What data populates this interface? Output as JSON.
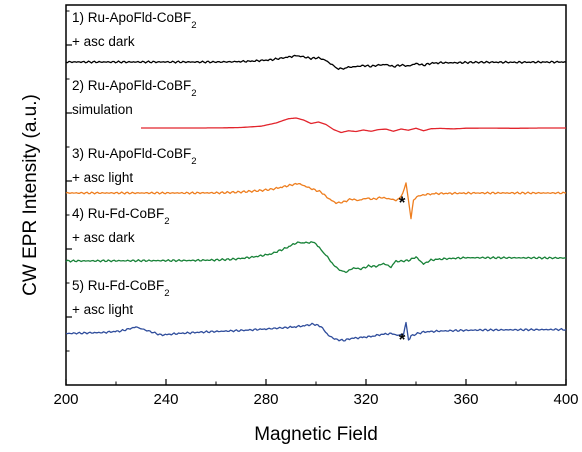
{
  "chart_data": {
    "type": "line",
    "title": "",
    "xlabel": "Magnetic Field",
    "ylabel": "CW EPR Intensity (a.u.)",
    "xlim": [
      200,
      400
    ],
    "x_ticks": [
      "200",
      "240",
      "280",
      "320",
      "360",
      "400"
    ],
    "grid": false,
    "legend": "none",
    "series": [
      {
        "label_line1": "1) Ru-ApoFld-CoBF",
        "label_sub": "2",
        "label_line2": "+ asc dark",
        "color": "#000000",
        "x": [
          200,
          260,
          268,
          275,
          282,
          288,
          292,
          295,
          298,
          301,
          304,
          307,
          309,
          311,
          313,
          316,
          319,
          322,
          325,
          328,
          331,
          334,
          337,
          340,
          343,
          346,
          350,
          356,
          362,
          370,
          380,
          390,
          400
        ],
        "y": [
          0,
          0,
          0.3,
          0.9,
          2.2,
          4.5,
          6.3,
          5.2,
          3.6,
          4.2,
          1.5,
          -3.8,
          -7,
          -6.5,
          -5.3,
          -4.6,
          -3.6,
          -4.3,
          -3.1,
          -2.5,
          -4.6,
          -3,
          -4.1,
          -1.5,
          -3.2,
          -1.3,
          -0.7,
          -0.8,
          -0.3,
          -0.2,
          -0.3,
          -0.1,
          0
        ]
      },
      {
        "name": "simulation",
        "label_line1": "2) Ru-ApoFld-CoBF",
        "label_sub": "2",
        "label_line2": "simulation",
        "color": "#e2242c",
        "x": [
          230,
          250,
          262,
          270,
          278,
          284,
          289,
          292,
          295,
          298,
          301,
          304,
          307,
          310,
          313,
          316,
          319,
          322,
          325,
          328,
          331,
          334,
          337,
          340,
          343,
          346,
          350,
          355,
          360,
          370,
          380,
          390,
          400
        ],
        "y": [
          0,
          0,
          0.1,
          0.5,
          1.8,
          5,
          9.3,
          10,
          8,
          4.5,
          6,
          3.5,
          -1.5,
          -4.5,
          -2.8,
          -3.5,
          -2,
          -3.3,
          -1.6,
          -1.1,
          -3.3,
          -1,
          -2.2,
          -0.2,
          -2.8,
          -0.7,
          -0.4,
          -0.9,
          -0.2,
          -0.1,
          -0.3,
          0,
          0
        ]
      },
      {
        "label_line1": "3) Ru-ApoFld-CoBF",
        "label_sub": "2",
        "label_line2": "+ asc light",
        "color": "#ee7e1f",
        "x": [
          200,
          250,
          262,
          270,
          278,
          283,
          287,
          290,
          293,
          296,
          299,
          302,
          305,
          308,
          311,
          314,
          317,
          320,
          323,
          326,
          329,
          332,
          334,
          336,
          338,
          339,
          341,
          344,
          348,
          355,
          365,
          380,
          400
        ],
        "y": [
          0,
          0,
          0.2,
          1,
          2.5,
          4,
          6.3,
          8,
          9.5,
          6.5,
          3.5,
          1,
          -5.5,
          -10,
          -9,
          -6,
          -7.5,
          -5.2,
          -6.2,
          -4.4,
          -5.7,
          -7.2,
          -4.3,
          9.5,
          -25,
          -6.5,
          -3,
          -1.5,
          -0.6,
          -0.3,
          0,
          0,
          0
        ]
      },
      {
        "label_line1": "4) Ru-Fd-CoBF",
        "label_sub": "2",
        "label_line2": "+ asc dark",
        "color": "#188238",
        "x": [
          200,
          250,
          260,
          268,
          275,
          282,
          288,
          292,
          294,
          296,
          298,
          300,
          302,
          304,
          307,
          310,
          312,
          315,
          318,
          321,
          324,
          327,
          330,
          332,
          334,
          337,
          340,
          343,
          346,
          350,
          360,
          380,
          400
        ],
        "y": [
          -3,
          -2.5,
          -2,
          -1,
          1,
          4,
          10,
          15,
          15.5,
          15,
          16,
          14.5,
          8,
          3,
          -7,
          -13,
          -14,
          -10,
          -11,
          -8,
          -8.5,
          -5.5,
          -9,
          -3,
          -3.2,
          -2.5,
          1,
          -6,
          -2,
          -1,
          0.3,
          0.2,
          0
        ]
      },
      {
        "label_line1": "5) Ru-Fd-CoBF",
        "label_sub": "2",
        "label_line2": "+ asc light",
        "color": "#2f4d9c",
        "x": [
          200,
          215,
          222,
          228,
          233,
          238,
          245,
          255,
          270,
          280,
          288,
          292,
          296,
          299,
          302,
          305,
          308,
          311,
          314,
          318,
          322,
          326,
          330,
          333,
          335,
          336,
          337,
          338,
          340,
          343,
          350,
          365,
          400
        ],
        "y": [
          -3.5,
          -2.5,
          -1,
          3,
          -1,
          -5,
          -3.5,
          -2,
          -0.5,
          1,
          2.5,
          3.2,
          4.5,
          6,
          3.5,
          -5.5,
          -9.5,
          -10.5,
          -8.5,
          -7.5,
          -6.5,
          -4.5,
          -3.5,
          -5.5,
          -4,
          8,
          -10,
          -6,
          -4,
          -2,
          -1,
          0,
          0.5
        ]
      }
    ],
    "annotations": [
      {
        "text": "*",
        "x": 338,
        "series_index": 2
      },
      {
        "text": "*",
        "x": 338,
        "series_index": 4
      }
    ]
  }
}
